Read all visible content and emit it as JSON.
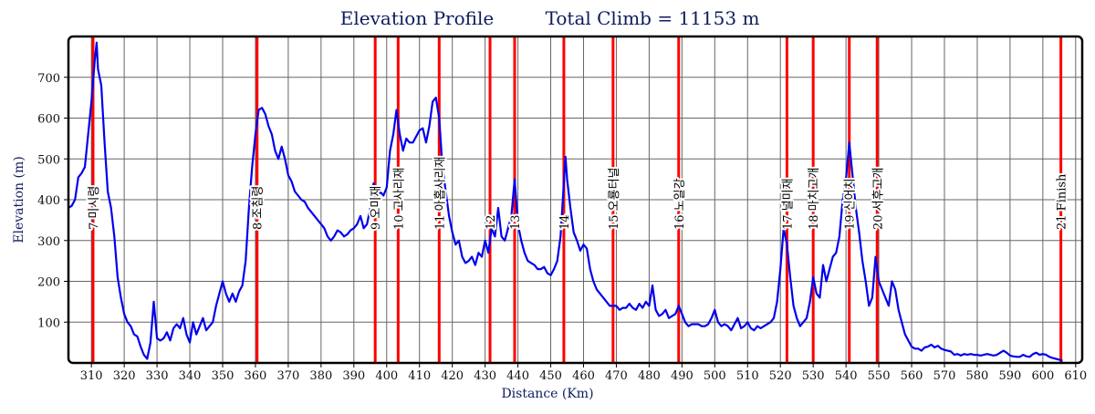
{
  "chart_data": {
    "type": "line",
    "title": "Elevation Profile",
    "subtitle": "Total Climb = 11153 m",
    "xlabel": "Distance (Km)",
    "ylabel": "Elevation (m)",
    "xlim": [
      303,
      612
    ],
    "ylim": [
      0,
      800
    ],
    "grid": true,
    "x_ticks": [
      310,
      320,
      330,
      340,
      350,
      360,
      370,
      380,
      390,
      400,
      410,
      420,
      430,
      440,
      450,
      460,
      470,
      480,
      490,
      500,
      510,
      520,
      530,
      540,
      550,
      560,
      570,
      580,
      590,
      600,
      610
    ],
    "y_ticks": [
      100,
      200,
      300,
      400,
      500,
      600,
      700
    ],
    "colors": {
      "profile": "#0000ee",
      "checkpoint": "#ff0000",
      "grid": "#666666",
      "title": "#0d1b5e"
    },
    "checkpoints": [
      {
        "x": 310.5,
        "label": "7 미시령"
      },
      {
        "x": 360.5,
        "label": "8 조침령"
      },
      {
        "x": 396.5,
        "label": "9 오미재"
      },
      {
        "x": 403.5,
        "label": "10 고사리재"
      },
      {
        "x": 416.0,
        "label": "11 아홉사리재"
      },
      {
        "x": 431.5,
        "label": "12"
      },
      {
        "x": 439.0,
        "label": "13"
      },
      {
        "x": 454.0,
        "label": "14"
      },
      {
        "x": 469.0,
        "label": "15 오룡터널"
      },
      {
        "x": 489.0,
        "label": "16 노일강"
      },
      {
        "x": 522.0,
        "label": "17 널미재"
      },
      {
        "x": 530.0,
        "label": "18 마치고개"
      },
      {
        "x": 541.0,
        "label": "19 신어치"
      },
      {
        "x": 549.5,
        "label": "20 서후고개"
      },
      {
        "x": 605.5,
        "label": "21 Finish"
      }
    ],
    "series": [
      {
        "points": [
          [
            303,
            380
          ],
          [
            304,
            385
          ],
          [
            305,
            400
          ],
          [
            306,
            455
          ],
          [
            307,
            465
          ],
          [
            308,
            480
          ],
          [
            309,
            560
          ],
          [
            310,
            640
          ],
          [
            311,
            740
          ],
          [
            311.6,
            785
          ],
          [
            312,
            720
          ],
          [
            313,
            680
          ],
          [
            314,
            540
          ],
          [
            315,
            420
          ],
          [
            316,
            380
          ],
          [
            317,
            310
          ],
          [
            318,
            210
          ],
          [
            319,
            160
          ],
          [
            320,
            120
          ],
          [
            321,
            100
          ],
          [
            322,
            90
          ],
          [
            323,
            70
          ],
          [
            324,
            65
          ],
          [
            325,
            40
          ],
          [
            326,
            20
          ],
          [
            327,
            10
          ],
          [
            328,
            50
          ],
          [
            329,
            150
          ],
          [
            330,
            60
          ],
          [
            331,
            55
          ],
          [
            332,
            60
          ],
          [
            333,
            75
          ],
          [
            334,
            55
          ],
          [
            335,
            85
          ],
          [
            336,
            95
          ],
          [
            337,
            85
          ],
          [
            338,
            110
          ],
          [
            339,
            70
          ],
          [
            340,
            50
          ],
          [
            341,
            100
          ],
          [
            342,
            70
          ],
          [
            343,
            90
          ],
          [
            344,
            110
          ],
          [
            345,
            80
          ],
          [
            346,
            90
          ],
          [
            347,
            100
          ],
          [
            348,
            140
          ],
          [
            349,
            170
          ],
          [
            350,
            200
          ],
          [
            351,
            170
          ],
          [
            352,
            150
          ],
          [
            353,
            170
          ],
          [
            354,
            150
          ],
          [
            355,
            175
          ],
          [
            356,
            190
          ],
          [
            357,
            250
          ],
          [
            358,
            380
          ],
          [
            359,
            480
          ],
          [
            360,
            560
          ],
          [
            361,
            620
          ],
          [
            362,
            625
          ],
          [
            363,
            610
          ],
          [
            364,
            580
          ],
          [
            365,
            560
          ],
          [
            366,
            520
          ],
          [
            367,
            500
          ],
          [
            368,
            530
          ],
          [
            369,
            500
          ],
          [
            370,
            460
          ],
          [
            371,
            445
          ],
          [
            372,
            420
          ],
          [
            373,
            410
          ],
          [
            374,
            400
          ],
          [
            375,
            395
          ],
          [
            376,
            380
          ],
          [
            377,
            370
          ],
          [
            378,
            360
          ],
          [
            379,
            350
          ],
          [
            380,
            340
          ],
          [
            381,
            330
          ],
          [
            382,
            310
          ],
          [
            383,
            300
          ],
          [
            384,
            310
          ],
          [
            385,
            325
          ],
          [
            386,
            320
          ],
          [
            387,
            310
          ],
          [
            388,
            315
          ],
          [
            389,
            325
          ],
          [
            390,
            330
          ],
          [
            391,
            340
          ],
          [
            392,
            360
          ],
          [
            393,
            330
          ],
          [
            394,
            340
          ],
          [
            395,
            380
          ],
          [
            396,
            440
          ],
          [
            397,
            400
          ],
          [
            398,
            420
          ],
          [
            399,
            410
          ],
          [
            400,
            430
          ],
          [
            401,
            520
          ],
          [
            402,
            560
          ],
          [
            403,
            620
          ],
          [
            404,
            560
          ],
          [
            405,
            520
          ],
          [
            406,
            550
          ],
          [
            407,
            540
          ],
          [
            408,
            540
          ],
          [
            409,
            555
          ],
          [
            410,
            570
          ],
          [
            411,
            575
          ],
          [
            412,
            540
          ],
          [
            413,
            580
          ],
          [
            414,
            640
          ],
          [
            415,
            650
          ],
          [
            416,
            600
          ],
          [
            417,
            480
          ],
          [
            418,
            420
          ],
          [
            419,
            360
          ],
          [
            420,
            320
          ],
          [
            421,
            290
          ],
          [
            422,
            300
          ],
          [
            423,
            260
          ],
          [
            424,
            245
          ],
          [
            425,
            250
          ],
          [
            426,
            260
          ],
          [
            427,
            240
          ],
          [
            428,
            270
          ],
          [
            429,
            260
          ],
          [
            430,
            300
          ],
          [
            431,
            270
          ],
          [
            432,
            330
          ],
          [
            433,
            310
          ],
          [
            434,
            380
          ],
          [
            435,
            310
          ],
          [
            436,
            300
          ],
          [
            437,
            330
          ],
          [
            438,
            360
          ],
          [
            439,
            450
          ],
          [
            440,
            340
          ],
          [
            441,
            300
          ],
          [
            442,
            270
          ],
          [
            443,
            250
          ],
          [
            444,
            245
          ],
          [
            445,
            240
          ],
          [
            446,
            230
          ],
          [
            447,
            230
          ],
          [
            448,
            235
          ],
          [
            449,
            220
          ],
          [
            450,
            215
          ],
          [
            451,
            230
          ],
          [
            452,
            250
          ],
          [
            453,
            310
          ],
          [
            454,
            440
          ],
          [
            454.5,
            505
          ],
          [
            455,
            450
          ],
          [
            456,
            380
          ],
          [
            457,
            320
          ],
          [
            458,
            300
          ],
          [
            459,
            275
          ],
          [
            460,
            290
          ],
          [
            461,
            280
          ],
          [
            462,
            230
          ],
          [
            463,
            200
          ],
          [
            464,
            180
          ],
          [
            465,
            170
          ],
          [
            466,
            160
          ],
          [
            467,
            150
          ],
          [
            468,
            140
          ],
          [
            469,
            140
          ],
          [
            470,
            140
          ],
          [
            471,
            130
          ],
          [
            472,
            135
          ],
          [
            473,
            135
          ],
          [
            474,
            145
          ],
          [
            475,
            135
          ],
          [
            476,
            130
          ],
          [
            477,
            145
          ],
          [
            478,
            135
          ],
          [
            479,
            150
          ],
          [
            480,
            140
          ],
          [
            481,
            190
          ],
          [
            482,
            130
          ],
          [
            483,
            115
          ],
          [
            484,
            120
          ],
          [
            485,
            130
          ],
          [
            486,
            110
          ],
          [
            487,
            115
          ],
          [
            488,
            120
          ],
          [
            489,
            140
          ],
          [
            490,
            120
          ],
          [
            491,
            100
          ],
          [
            492,
            90
          ],
          [
            493,
            95
          ],
          [
            494,
            95
          ],
          [
            495,
            95
          ],
          [
            496,
            90
          ],
          [
            497,
            90
          ],
          [
            498,
            95
          ],
          [
            499,
            110
          ],
          [
            500,
            130
          ],
          [
            501,
            100
          ],
          [
            502,
            90
          ],
          [
            503,
            95
          ],
          [
            504,
            90
          ],
          [
            505,
            80
          ],
          [
            506,
            95
          ],
          [
            507,
            110
          ],
          [
            508,
            85
          ],
          [
            509,
            90
          ],
          [
            510,
            100
          ],
          [
            511,
            85
          ],
          [
            512,
            80
          ],
          [
            513,
            90
          ],
          [
            514,
            85
          ],
          [
            515,
            90
          ],
          [
            516,
            95
          ],
          [
            517,
            100
          ],
          [
            518,
            110
          ],
          [
            519,
            150
          ],
          [
            520,
            230
          ],
          [
            521,
            330
          ],
          [
            522,
            290
          ],
          [
            523,
            210
          ],
          [
            524,
            140
          ],
          [
            525,
            110
          ],
          [
            526,
            90
          ],
          [
            527,
            100
          ],
          [
            528,
            110
          ],
          [
            529,
            150
          ],
          [
            530,
            210
          ],
          [
            531,
            170
          ],
          [
            532,
            160
          ],
          [
            533,
            240
          ],
          [
            534,
            200
          ],
          [
            535,
            230
          ],
          [
            536,
            260
          ],
          [
            537,
            270
          ],
          [
            538,
            310
          ],
          [
            539,
            400
          ],
          [
            540,
            450
          ],
          [
            541,
            540
          ],
          [
            542,
            460
          ],
          [
            543,
            380
          ],
          [
            544,
            320
          ],
          [
            545,
            250
          ],
          [
            546,
            200
          ],
          [
            547,
            140
          ],
          [
            548,
            160
          ],
          [
            549,
            260
          ],
          [
            550,
            200
          ],
          [
            551,
            180
          ],
          [
            552,
            160
          ],
          [
            553,
            140
          ],
          [
            554,
            200
          ],
          [
            555,
            180
          ],
          [
            556,
            130
          ],
          [
            557,
            100
          ],
          [
            558,
            70
          ],
          [
            559,
            55
          ],
          [
            560,
            40
          ],
          [
            561,
            35
          ],
          [
            562,
            35
          ],
          [
            563,
            30
          ],
          [
            564,
            38
          ],
          [
            565,
            40
          ],
          [
            566,
            45
          ],
          [
            567,
            38
          ],
          [
            568,
            42
          ],
          [
            569,
            35
          ],
          [
            570,
            32
          ],
          [
            571,
            30
          ],
          [
            572,
            28
          ],
          [
            573,
            20
          ],
          [
            574,
            22
          ],
          [
            575,
            18
          ],
          [
            576,
            22
          ],
          [
            577,
            20
          ],
          [
            578,
            22
          ],
          [
            579,
            20
          ],
          [
            580,
            20
          ],
          [
            581,
            18
          ],
          [
            582,
            20
          ],
          [
            583,
            22
          ],
          [
            584,
            20
          ],
          [
            585,
            18
          ],
          [
            586,
            20
          ],
          [
            587,
            25
          ],
          [
            588,
            30
          ],
          [
            589,
            25
          ],
          [
            590,
            18
          ],
          [
            591,
            16
          ],
          [
            592,
            15
          ],
          [
            593,
            15
          ],
          [
            594,
            20
          ],
          [
            595,
            16
          ],
          [
            596,
            15
          ],
          [
            597,
            22
          ],
          [
            598,
            25
          ],
          [
            599,
            20
          ],
          [
            600,
            22
          ],
          [
            601,
            20
          ],
          [
            602,
            15
          ],
          [
            603,
            12
          ],
          [
            604,
            10
          ],
          [
            605,
            8
          ],
          [
            606,
            5
          ]
        ]
      }
    ]
  }
}
